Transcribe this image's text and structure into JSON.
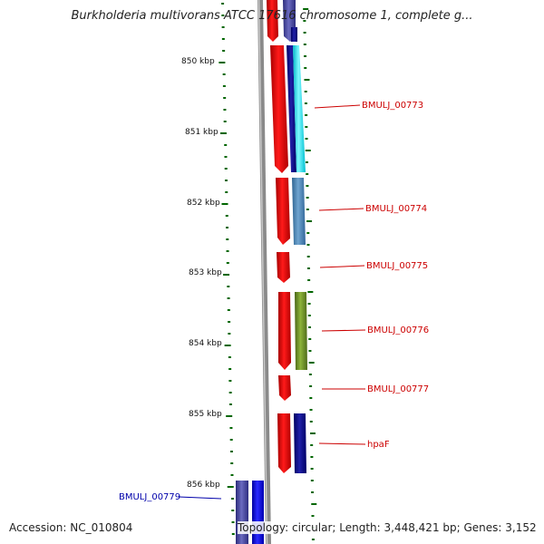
{
  "title": "Burkholderia multivorans ATCC 17616 chromosome 1, complete g...",
  "footer": {
    "accession": "Accession: NC_010804",
    "topology": "Topology: circular; Length: 3,448,421 bp; Genes: 3,152"
  },
  "scale_labels": [
    "850 kbp",
    "851 kbp",
    "852 kbp",
    "853 kbp",
    "854 kbp",
    "855 kbp",
    "856 kbp"
  ],
  "gene_labels": [
    {
      "text": "BMULJ_00773",
      "color": "#cc0000"
    },
    {
      "text": "BMULJ_00774",
      "color": "#cc0000"
    },
    {
      "text": "BMULJ_00775",
      "color": "#cc0000"
    },
    {
      "text": "BMULJ_00776",
      "color": "#cc0000"
    },
    {
      "text": "BMULJ_00777",
      "color": "#cc0000"
    },
    {
      "text": "hpaF",
      "color": "#cc0000"
    },
    {
      "text": "BMULJ_00779",
      "color": "#0000aa"
    }
  ],
  "colors": {
    "forward_strand": "#ff0000",
    "reverse_strand": "#0000ff",
    "backbone": "#8a8a8a",
    "ticks": "#006600",
    "gene_00773": "#00e5ee",
    "gene_00774": "#4682b4",
    "gene_00776": "#6b8e23",
    "gene_hpaF": "#000080",
    "gene_00779": "#3f3f9f"
  }
}
